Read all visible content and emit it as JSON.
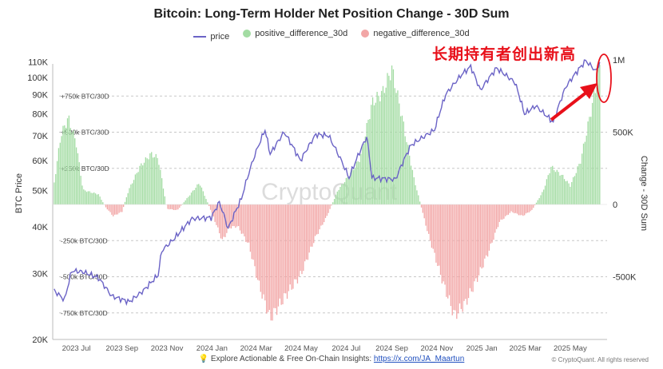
{
  "chart_data": {
    "type": "line+bar",
    "title": "Bitcoin: Long-Term Holder Net Position Change - 30D Sum",
    "legend": [
      "price",
      "positive_difference_30d",
      "negative_difference_30d"
    ],
    "ylabel_left": "BTC Price",
    "ylabel_right": "Change - 30D Sum",
    "y_left_scale": "log",
    "y_left_ticks": [
      "20K",
      "30K",
      "40K",
      "50K",
      "60K",
      "70K",
      "80K",
      "90K",
      "100K",
      "110K"
    ],
    "y_right_ticks": [
      "1M",
      "500K",
      "0",
      "-500K"
    ],
    "x_ticks": [
      "2023 Jul",
      "2023 Sep",
      "2023 Nov",
      "2024 Jan",
      "2024 Mar",
      "2024 May",
      "2024 Jul",
      "2024 Sep",
      "2024 Nov",
      "2025 Jan",
      "2025 Mar",
      "2025 May"
    ],
    "reference_lines": [
      "+750k BTC/30D",
      "+500k BTC/30D",
      "+250k BTC/30D",
      "-250k BTC/30D",
      "-500k BTC/30D",
      "-750k BTC/30D"
    ],
    "price_series": {
      "name": "price",
      "color": "#6b63c6",
      "points": [
        [
          "2023-06-01",
          27000
        ],
        [
          "2023-06-15",
          25500
        ],
        [
          "2023-06-25",
          30500
        ],
        [
          "2023-07-10",
          30300
        ],
        [
          "2023-07-31",
          29200
        ],
        [
          "2023-08-18",
          26100
        ],
        [
          "2023-09-11",
          25200
        ],
        [
          "2023-09-30",
          27000
        ],
        [
          "2023-10-20",
          29700
        ],
        [
          "2023-10-25",
          34500
        ],
        [
          "2023-11-10",
          37000
        ],
        [
          "2023-12-05",
          42000
        ],
        [
          "2023-12-31",
          42300
        ],
        [
          "2024-01-11",
          46500
        ],
        [
          "2024-01-23",
          39500
        ],
        [
          "2024-02-10",
          47500
        ],
        [
          "2024-02-28",
          62000
        ],
        [
          "2024-03-13",
          72500
        ],
        [
          "2024-03-20",
          62500
        ],
        [
          "2024-04-08",
          71500
        ],
        [
          "2024-04-30",
          60000
        ],
        [
          "2024-05-21",
          70500
        ],
        [
          "2024-06-07",
          70000
        ],
        [
          "2024-07-05",
          54000
        ],
        [
          "2024-07-29",
          69500
        ],
        [
          "2024-08-05",
          54000
        ],
        [
          "2024-09-06",
          53500
        ],
        [
          "2024-09-27",
          66000
        ],
        [
          "2024-10-29",
          72500
        ],
        [
          "2024-11-13",
          90000
        ],
        [
          "2024-12-05",
          102000
        ],
        [
          "2024-12-17",
          107000
        ],
        [
          "2024-12-30",
          92500
        ],
        [
          "2025-01-21",
          106000
        ],
        [
          "2025-02-15",
          97000
        ],
        [
          "2025-02-28",
          80000
        ],
        [
          "2025-03-15",
          84000
        ],
        [
          "2025-04-08",
          76000
        ],
        [
          "2025-04-25",
          94500
        ],
        [
          "2025-05-22",
          111000
        ],
        [
          "2025-06-05",
          104000
        ],
        [
          "2025-06-10",
          110000
        ]
      ]
    },
    "net_position_series": {
      "name": "30D sum (positive green, negative red)",
      "positive_color": "#a3dca3",
      "negative_color": "#f2a6a6",
      "points": [
        [
          "2023-06-01",
          150000
        ],
        [
          "2023-06-10",
          480000
        ],
        [
          "2023-06-20",
          600000
        ],
        [
          "2023-07-01",
          420000
        ],
        [
          "2023-07-10",
          100000
        ],
        [
          "2023-07-31",
          70000
        ],
        [
          "2023-08-10",
          -20000
        ],
        [
          "2023-08-20",
          -80000
        ],
        [
          "2023-09-01",
          -50000
        ],
        [
          "2023-09-10",
          100000
        ],
        [
          "2023-09-25",
          260000
        ],
        [
          "2023-10-10",
          350000
        ],
        [
          "2023-10-20",
          320000
        ],
        [
          "2023-11-01",
          -30000
        ],
        [
          "2023-11-15",
          -40000
        ],
        [
          "2023-12-01",
          60000
        ],
        [
          "2023-12-15",
          150000
        ],
        [
          "2024-01-01",
          -60000
        ],
        [
          "2024-01-15",
          -250000
        ],
        [
          "2024-01-25",
          -160000
        ],
        [
          "2024-02-05",
          -150000
        ],
        [
          "2024-02-20",
          -280000
        ],
        [
          "2024-03-05",
          -560000
        ],
        [
          "2024-03-20",
          -790000
        ],
        [
          "2024-04-10",
          -630000
        ],
        [
          "2024-05-01",
          -480000
        ],
        [
          "2024-05-20",
          -230000
        ],
        [
          "2024-06-05",
          -80000
        ],
        [
          "2024-06-20",
          100000
        ],
        [
          "2024-07-05",
          200000
        ],
        [
          "2024-07-20",
          320000
        ],
        [
          "2024-08-05",
          700000
        ],
        [
          "2024-08-20",
          780000
        ],
        [
          "2024-09-01",
          940000
        ],
        [
          "2024-09-15",
          600000
        ],
        [
          "2024-10-01",
          180000
        ],
        [
          "2024-10-20",
          -200000
        ],
        [
          "2024-11-10",
          -550000
        ],
        [
          "2024-11-25",
          -770000
        ],
        [
          "2024-12-10",
          -680000
        ],
        [
          "2024-12-25",
          -520000
        ],
        [
          "2025-01-10",
          -330000
        ],
        [
          "2025-01-25",
          -120000
        ],
        [
          "2025-02-10",
          -50000
        ],
        [
          "2025-02-25",
          -80000
        ],
        [
          "2025-03-10",
          -40000
        ],
        [
          "2025-03-25",
          90000
        ],
        [
          "2025-04-05",
          260000
        ],
        [
          "2025-04-20",
          200000
        ],
        [
          "2025-05-01",
          130000
        ],
        [
          "2025-05-15",
          300000
        ],
        [
          "2025-05-28",
          620000
        ],
        [
          "2025-06-10",
          950000
        ]
      ]
    }
  },
  "annotation": {
    "text": "长期持有者创出新高",
    "color": "#e8101a"
  },
  "watermark": "CryptoQuant",
  "footer": {
    "text": "Explore Actionable & Free On-Chain Insights:",
    "link": "https://x.com/JA_Maartun",
    "copyright": "© CryptoQuant. All rights reserved"
  }
}
